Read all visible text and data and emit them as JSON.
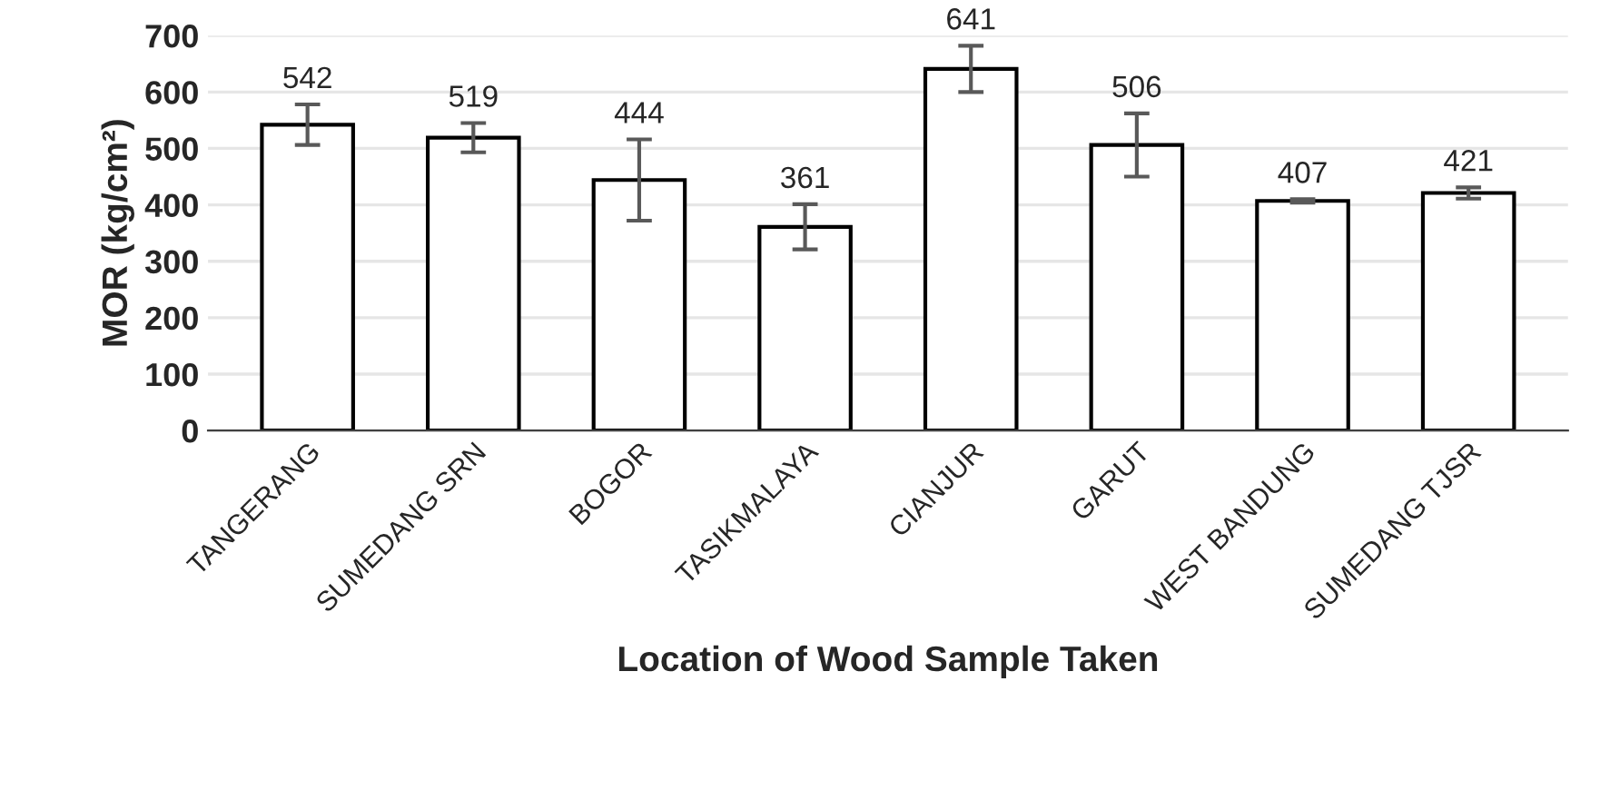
{
  "chart_data": {
    "type": "bar",
    "xlabel": "Location of Wood Sample Taken",
    "ylabel": "MOR (kg/cm²)",
    "categories": [
      "TANGERANG",
      "SUMEDANG SRN",
      "BOGOR",
      "TASIKMALAYA",
      "CIANJUR",
      "GARUT",
      "WEST BANDUNG",
      "SUMEDANG TJSR"
    ],
    "values": [
      542,
      519,
      444,
      361,
      641,
      506,
      407,
      421
    ],
    "errors": [
      36,
      26,
      72,
      40,
      41,
      56,
      3,
      10
    ],
    "color": "#ffffff",
    "ylim": [
      0,
      700
    ],
    "yticks": [
      0,
      100,
      200,
      300,
      400,
      500,
      600,
      700
    ],
    "grid": "y",
    "data_labels": true
  }
}
